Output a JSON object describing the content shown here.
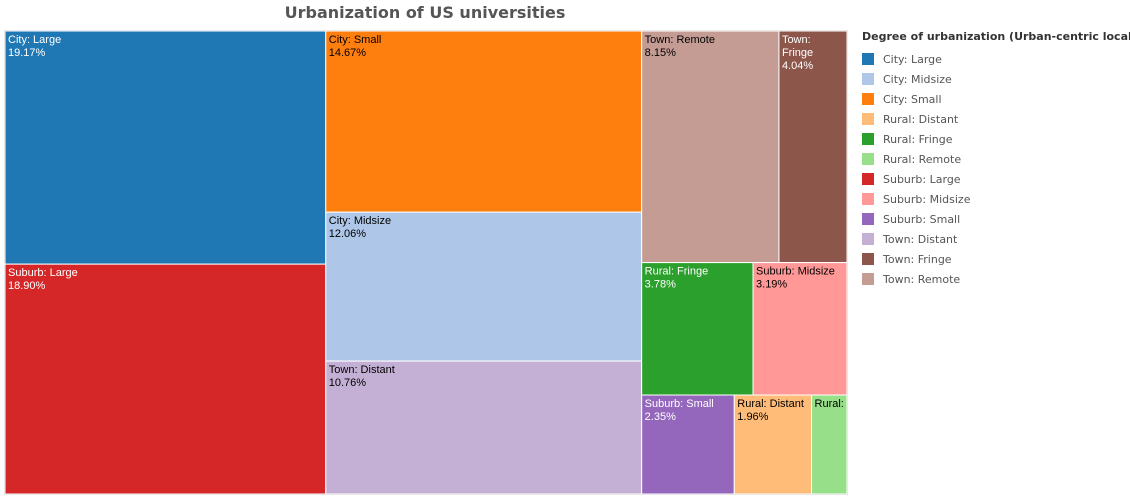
{
  "chart_data": {
    "type": "treemap",
    "title": "Urbanization of US universities",
    "legend_title": "Degree of urbanization (Urban-centric locale)",
    "legend_position": "right",
    "unit": "%",
    "categories": [
      {
        "name": "City: Large",
        "label": "City: Large",
        "value": 19.17,
        "value_label": "19.17%",
        "color": "#1f77b4",
        "text_color": "#ffffff"
      },
      {
        "name": "City: Midsize",
        "label": "City: Midsize",
        "value": 12.06,
        "value_label": "12.06%",
        "color": "#aec7e8",
        "text_color": "#000000"
      },
      {
        "name": "City: Small",
        "label": "City: Small",
        "value": 14.67,
        "value_label": "14.67%",
        "color": "#ff7f0e",
        "text_color": "#000000"
      },
      {
        "name": "Rural: Distant",
        "label": "Rural: Distant",
        "value": 1.96,
        "value_label": "1.96%",
        "color": "#ffbb78",
        "text_color": "#000000"
      },
      {
        "name": "Rural: Fringe",
        "label": "Rural: Fringe",
        "value": 3.78,
        "value_label": "3.78%",
        "color": "#2ca02c",
        "text_color": "#ffffff"
      },
      {
        "name": "Rural: Remote",
        "label": "Rural:",
        "value": 0.9,
        "value_label": "",
        "color": "#98df8a",
        "text_color": "#000000"
      },
      {
        "name": "Suburb: Large",
        "label": "Suburb: Large",
        "value": 18.9,
        "value_label": "18.90%",
        "color": "#d62728",
        "text_color": "#ffffff"
      },
      {
        "name": "Suburb: Midsize",
        "label": "Suburb: Midsize",
        "value": 3.19,
        "value_label": "3.19%",
        "color": "#ff9896",
        "text_color": "#000000"
      },
      {
        "name": "Suburb: Small",
        "label": "Suburb: Small",
        "value": 2.35,
        "value_label": "2.35%",
        "color": "#9467bd",
        "text_color": "#ffffff"
      },
      {
        "name": "Town: Distant",
        "label": "Town: Distant",
        "value": 10.76,
        "value_label": "10.76%",
        "color": "#c5b0d5",
        "text_color": "#000000"
      },
      {
        "name": "Town: Fringe",
        "label": "Town: Fringe",
        "value": 4.04,
        "value_label": "4.04%",
        "color": "#8c564b",
        "text_color": "#ffffff"
      },
      {
        "name": "Town: Remote",
        "label": "Town: Remote",
        "value": 8.15,
        "value_label": "8.15%",
        "color": "#c49c94",
        "text_color": "#000000"
      }
    ]
  }
}
